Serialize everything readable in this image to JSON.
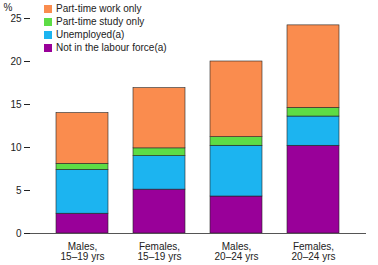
{
  "chart_data": {
    "type": "bar",
    "stacked": true,
    "categories": [
      "Males,\n15–19 yrs",
      "Females,\n15–19 yrs",
      "Males,\n20–24 yrs",
      "Females,\n20–24 yrs"
    ],
    "series": [
      {
        "name": "Not in the labour force(a)",
        "color": "#990099",
        "values": [
          2.3,
          5.1,
          4.3,
          10.2
        ]
      },
      {
        "name": "Unemployed(a)",
        "color": "#1cb4f0",
        "values": [
          5.1,
          3.9,
          5.9,
          3.4
        ]
      },
      {
        "name": "Part-time study only",
        "color": "#5ddc45",
        "values": [
          0.7,
          0.9,
          1.0,
          1.0
        ]
      },
      {
        "name": "Part-time work only",
        "color": "#fa8c4e",
        "values": [
          5.9,
          7.0,
          8.8,
          9.6
        ]
      }
    ],
    "y_label": "%",
    "ylim": [
      0,
      25
    ],
    "yticks": [
      0,
      5,
      10,
      15,
      20,
      25
    ],
    "grid": false,
    "legend": "top-left"
  }
}
